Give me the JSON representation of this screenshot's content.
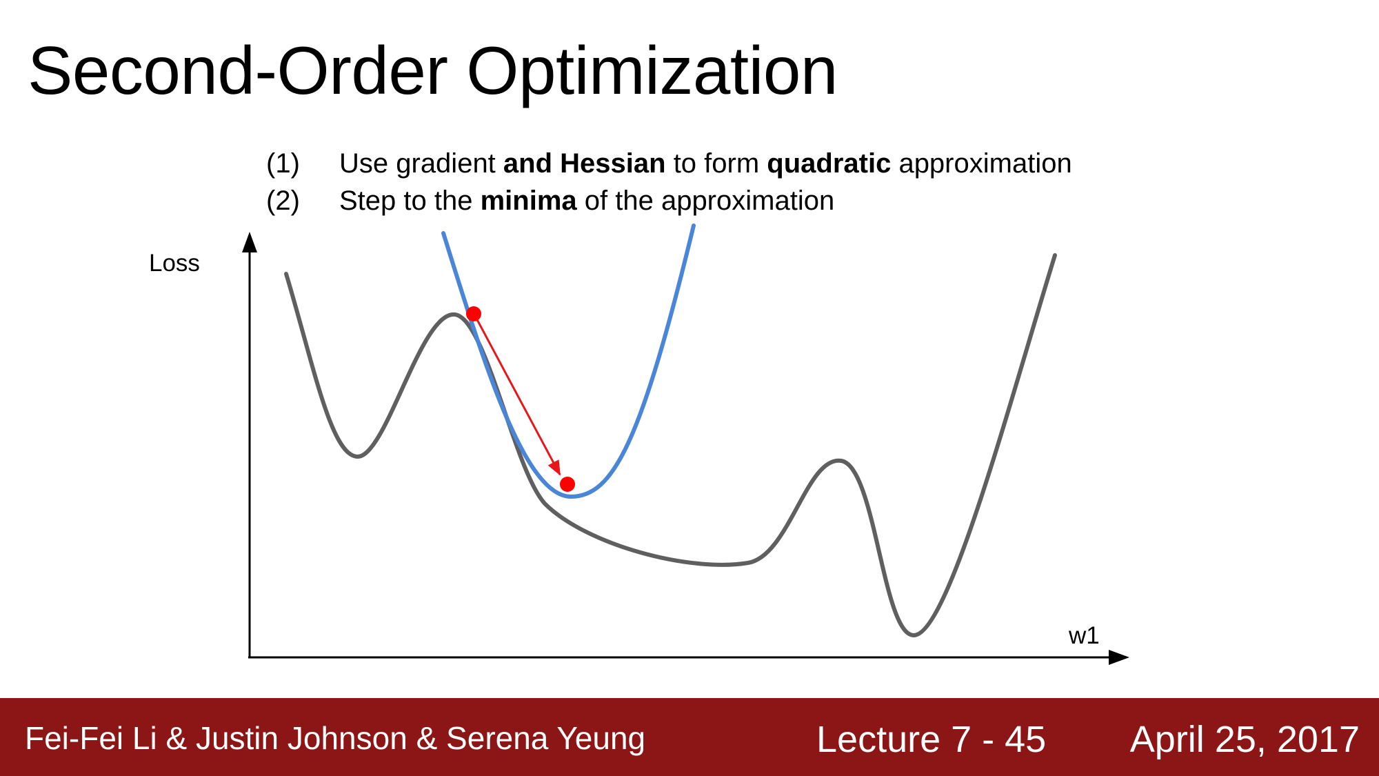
{
  "slide": {
    "title": "Second-Order Optimization",
    "steps": [
      {
        "number": "(1)",
        "parts": [
          {
            "text": "Use gradient ",
            "bold": false
          },
          {
            "text": "and Hessian",
            "bold": true
          },
          {
            "text": " to form ",
            "bold": false
          },
          {
            "text": "quadratic",
            "bold": true
          },
          {
            "text": " approximation",
            "bold": false
          }
        ]
      },
      {
        "number": "(2)",
        "parts": [
          {
            "text": "Step to the ",
            "bold": false
          },
          {
            "text": "minima",
            "bold": true
          },
          {
            "text": " of the approximation",
            "bold": false
          }
        ]
      }
    ]
  },
  "diagram": {
    "y_axis_label": "Loss",
    "x_axis_label": "w1",
    "colors": {
      "loss_curve": "#5f5f5f",
      "quadratic_approximation": "#4a86d8",
      "step_arrow": "#e8161b",
      "points": "#ff0000",
      "axes": "#000000"
    }
  },
  "footer": {
    "authors": "Fei-Fei Li & Justin Johnson & Serena Yeung",
    "lecture": "Lecture 7 - 45",
    "date": "April 25, 2017",
    "background": "#8c1515"
  }
}
